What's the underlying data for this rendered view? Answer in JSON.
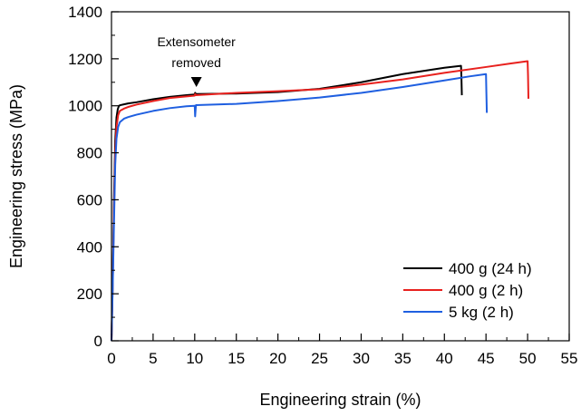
{
  "chart_data": {
    "type": "line",
    "title": "",
    "xlabel": "Engineering strain (%)",
    "ylabel": "Engineering stress (MPa)",
    "xlim": [
      0,
      55
    ],
    "ylim": [
      0,
      1400
    ],
    "xticks": [
      0,
      5,
      10,
      15,
      20,
      25,
      30,
      35,
      40,
      45,
      50,
      55
    ],
    "yticks": [
      0,
      200,
      400,
      600,
      800,
      1000,
      1200,
      1400
    ],
    "xtick_labels": [
      "0",
      "5",
      "10",
      "15",
      "20",
      "25",
      "30",
      "35",
      "40",
      "45",
      "50",
      "55"
    ],
    "ytick_labels": [
      "0",
      "200",
      "400",
      "600",
      "800",
      "1000",
      "1200",
      "1400"
    ],
    "grid": false,
    "legend_position": "bottom-right",
    "series": [
      {
        "name": "400 g (24 h)",
        "color": "#000000",
        "x": [
          0,
          0.15,
          0.3,
          0.45,
          0.6,
          0.75,
          0.9,
          1.1,
          1.5,
          2,
          3,
          5,
          7,
          9,
          10,
          10.05,
          10.15,
          15,
          20,
          25,
          30,
          35,
          40,
          42,
          42.05,
          42.1
        ],
        "y": [
          0,
          250,
          600,
          850,
          950,
          985,
          1000,
          1003,
          1006,
          1010,
          1015,
          1028,
          1038,
          1045,
          1048,
          1055,
          1050,
          1052,
          1058,
          1072,
          1100,
          1135,
          1162,
          1170,
          1120,
          1045
        ]
      },
      {
        "name": "400 g (2 h)",
        "color": "#e8211e",
        "x": [
          0,
          0.15,
          0.3,
          0.45,
          0.6,
          0.8,
          1.0,
          1.5,
          2,
          3,
          5,
          7,
          9,
          10,
          10.05,
          10.15,
          15,
          20,
          25,
          30,
          35,
          40,
          45,
          48,
          50,
          50.05,
          50.1
        ],
        "y": [
          0,
          250,
          550,
          800,
          910,
          960,
          978,
          988,
          995,
          1005,
          1020,
          1033,
          1040,
          1043,
          1050,
          1045,
          1055,
          1062,
          1070,
          1090,
          1112,
          1140,
          1165,
          1180,
          1190,
          1130,
          1030
        ]
      },
      {
        "name": "5 kg (2 h)",
        "color": "#1f5fe0",
        "x": [
          0,
          0.15,
          0.3,
          0.45,
          0.6,
          0.8,
          1.0,
          1.5,
          2,
          3,
          5,
          7,
          9,
          10,
          10.05,
          10.15,
          15,
          20,
          25,
          30,
          35,
          40,
          43,
          45,
          45.05,
          45.1
        ],
        "y": [
          0,
          230,
          500,
          750,
          860,
          910,
          930,
          945,
          952,
          962,
          978,
          990,
          998,
          1000,
          955,
          1003,
          1008,
          1020,
          1035,
          1055,
          1080,
          1108,
          1125,
          1135,
          1050,
          970
        ]
      }
    ],
    "annotations": [
      {
        "text_lines": [
          "Extensometer",
          "removed"
        ],
        "x": 10.2,
        "y": 1080
      }
    ]
  }
}
